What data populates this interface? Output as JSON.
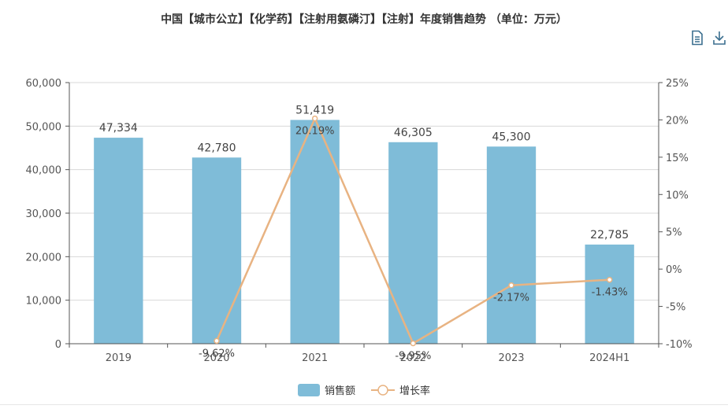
{
  "title": "中国【城市公立】【化学药】【注射用氨磷汀】【注射】年度销售趋势 （单位：万元）",
  "toolbar": {
    "icons": [
      "document-icon",
      "download-icon"
    ]
  },
  "legend": {
    "sales": "销售额",
    "growth": "增长率"
  },
  "colors": {
    "bar": "#7fbcd8",
    "line": "#e8b382",
    "grid": "#d8d8d8",
    "axis": "#555555"
  },
  "chart_data": {
    "type": "bar",
    "categories": [
      "2019",
      "2020",
      "2021",
      "2022",
      "2023",
      "2024H1"
    ],
    "series": [
      {
        "name": "销售额",
        "type": "bar",
        "axis": "left",
        "values": [
          47334,
          42780,
          51419,
          46305,
          45300,
          22785
        ],
        "labels": [
          "47,334",
          "42,780",
          "51,419",
          "46,305",
          "45,300",
          "22,785"
        ]
      },
      {
        "name": "增长率",
        "type": "line",
        "axis": "right",
        "values": [
          null,
          -9.62,
          20.19,
          -9.95,
          -2.17,
          -1.43
        ],
        "labels": [
          "",
          "-9.62%",
          "20.19%",
          "-9.95%",
          "-2.17%",
          "-1.43%"
        ]
      }
    ],
    "y_left": {
      "min": 0,
      "max": 60000,
      "ticks": [
        "0",
        "10,000",
        "20,000",
        "30,000",
        "40,000",
        "50,000",
        "60,000"
      ]
    },
    "y_right": {
      "min": -10,
      "max": 25,
      "ticks": [
        "-10%",
        "-5%",
        "0%",
        "5%",
        "10%",
        "15%",
        "20%",
        "25%"
      ]
    },
    "grid": true,
    "legend_position": "bottom"
  }
}
